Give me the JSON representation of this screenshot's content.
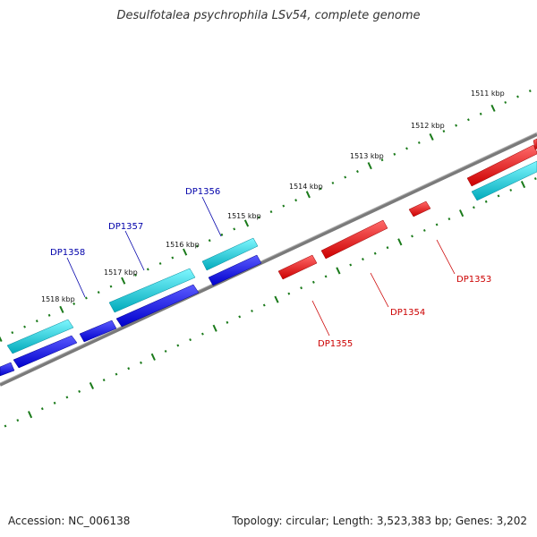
{
  "title": "Desulfotalea psychrophila LSv54, complete genome",
  "footer": {
    "accession": "Accession: NC_006138",
    "summary": "Topology: circular; Length: 3,523,383 bp; Genes: 3,202"
  },
  "colors": {
    "backbone": "#808080",
    "tick": "#1a7a1a",
    "forward_gene": "#0000ee",
    "forward_gene_alt": "#00c8d8",
    "reverse_gene": "#ee0000",
    "forward_label": "#0000aa",
    "reverse_label": "#cc0000"
  },
  "scale_labels": [
    "1511 kbp",
    "1512 kbp",
    "1513 kbp",
    "1514 kbp",
    "1515 kbp",
    "1516 kbp",
    "1517 kbp",
    "1518 kbp"
  ],
  "genes_labeled": {
    "forward": [
      "DP1356",
      "DP1357",
      "DP1358"
    ],
    "reverse": [
      "DP1353",
      "DP1354",
      "DP1355"
    ]
  }
}
